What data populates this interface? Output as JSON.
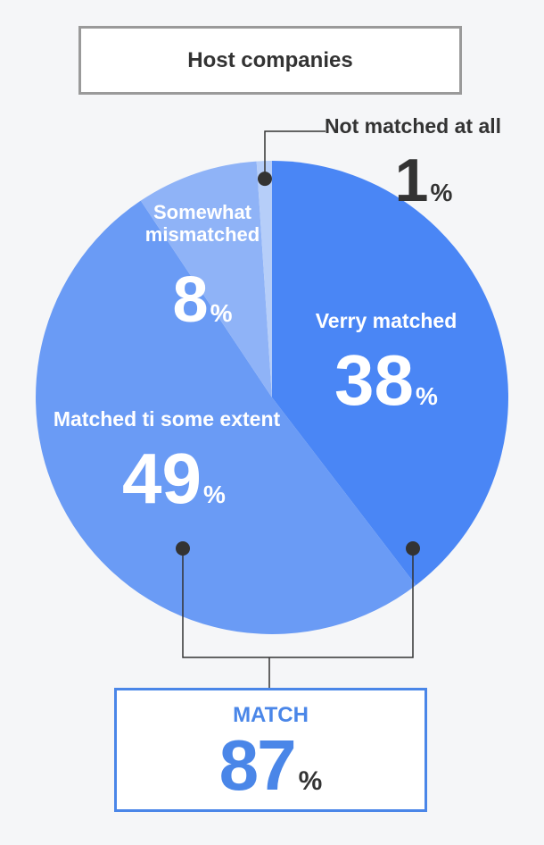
{
  "title": "Host companies",
  "chart_data": {
    "type": "pie",
    "title": "Host companies",
    "slices": [
      {
        "label": "Verry matched",
        "value": 38,
        "color": "#4a86f5"
      },
      {
        "label": "Matched ti some extent",
        "value": 49,
        "color": "#6a9bf5"
      },
      {
        "label": "Somewhat mismatched",
        "value": 8,
        "color": "#8fb3f7"
      },
      {
        "label": "Not matched at all",
        "value": 1,
        "color": "#b6cef9"
      }
    ],
    "unit": "%"
  },
  "match": {
    "label": "MATCH",
    "value": "87",
    "unit": "%"
  }
}
